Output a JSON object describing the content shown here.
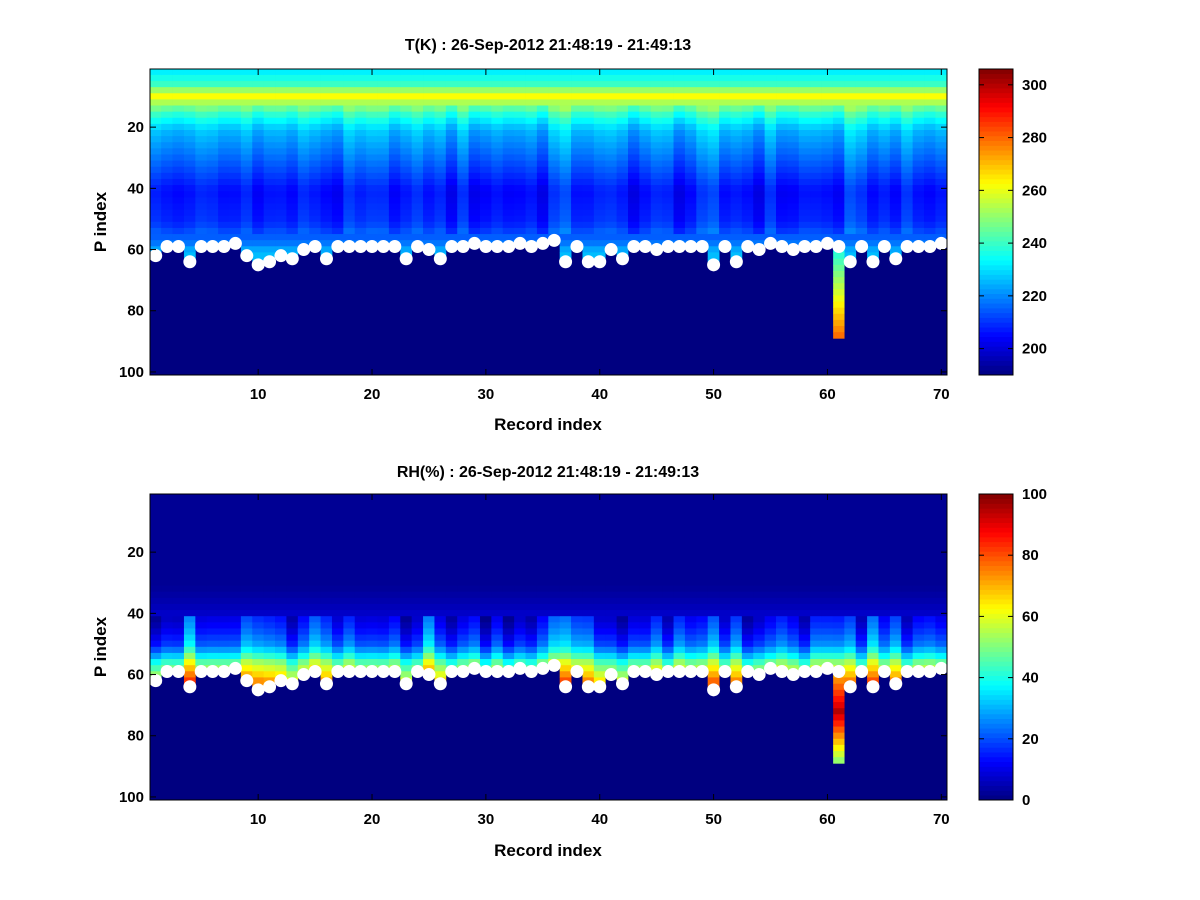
{
  "chart_data": [
    {
      "type": "heatmap",
      "title": "T(K) : 26-Sep-2012 21:48:19 - 21:49:13",
      "xlabel": "Record index",
      "ylabel": "P index",
      "xlim": [
        1,
        70
      ],
      "ylim": [
        1,
        101
      ],
      "y_reversed": true,
      "xticks": [
        10,
        20,
        30,
        40,
        50,
        60,
        70
      ],
      "yticks": [
        20,
        40,
        60,
        80,
        100
      ],
      "colormap": "jet",
      "clim": [
        190,
        306
      ],
      "colorbar_ticks": [
        200,
        220,
        240,
        260,
        280,
        300
      ],
      "marker_color": "#ffffff",
      "grid": false,
      "profile_levels": [
        {
          "p": 1,
          "value": 232
        },
        {
          "p": 5,
          "value": 240
        },
        {
          "p": 9,
          "value": 262
        },
        {
          "p": 14,
          "value": 240
        },
        {
          "p": 20,
          "value": 225
        },
        {
          "p": 30,
          "value": 215
        },
        {
          "p": 40,
          "value": 205
        },
        {
          "p": 50,
          "value": 208
        },
        {
          "p": 57,
          "value": 218
        },
        {
          "p": 60,
          "value": 226
        }
      ],
      "below_surface_value": 190,
      "anomaly": {
        "record": 61,
        "p_start": 59,
        "p_end": 89,
        "value_top": 236,
        "value_bottom": 282
      }
    },
    {
      "type": "heatmap",
      "title": "RH(%) : 26-Sep-2012 21:48:19 - 21:49:13",
      "xlabel": "Record index",
      "ylabel": "P index",
      "xlim": [
        1,
        70
      ],
      "ylim": [
        1,
        101
      ],
      "y_reversed": true,
      "xticks": [
        10,
        20,
        30,
        40,
        50,
        60,
        70
      ],
      "yticks": [
        20,
        40,
        60,
        80,
        100
      ],
      "colormap": "jet",
      "clim": [
        0,
        100
      ],
      "colorbar_ticks": [
        0,
        20,
        40,
        60,
        80,
        100
      ],
      "marker_color": "#ffffff",
      "grid": false,
      "profile_levels": [
        {
          "p": 1,
          "value": 2
        },
        {
          "p": 30,
          "value": 2
        },
        {
          "p": 38,
          "value": 6
        },
        {
          "p": 44,
          "value": 12
        },
        {
          "p": 49,
          "value": 20
        },
        {
          "p": 52,
          "value": 30
        },
        {
          "p": 55,
          "value": 45
        },
        {
          "p": 58,
          "value": 55
        },
        {
          "p": 61,
          "value": 65
        }
      ],
      "below_surface_value": 0,
      "anomaly": {
        "record": 61,
        "p_start": 59,
        "p_end": 89,
        "value_top": 70,
        "value_bottom": 45
      }
    }
  ],
  "surface_markers": {
    "records": [
      1,
      2,
      3,
      4,
      5,
      6,
      7,
      8,
      9,
      10,
      11,
      12,
      13,
      14,
      15,
      16,
      17,
      18,
      19,
      20,
      21,
      22,
      23,
      24,
      25,
      26,
      27,
      28,
      29,
      30,
      31,
      32,
      33,
      34,
      35,
      36,
      37,
      38,
      39,
      40,
      41,
      42,
      43,
      44,
      45,
      46,
      47,
      48,
      49,
      50,
      51,
      52,
      53,
      54,
      55,
      56,
      57,
      58,
      59,
      60,
      61,
      62,
      63,
      64,
      65,
      66,
      67,
      68,
      69,
      70
    ],
    "p_index": [
      62,
      59,
      59,
      64,
      59,
      59,
      59,
      58,
      62,
      65,
      64,
      62,
      63,
      60,
      59,
      63,
      59,
      59,
      59,
      59,
      59,
      59,
      63,
      59,
      60,
      63,
      59,
      59,
      58,
      59,
      59,
      59,
      58,
      59,
      58,
      57,
      64,
      59,
      64,
      64,
      60,
      63,
      59,
      59,
      60,
      59,
      59,
      59,
      59,
      65,
      59,
      64,
      59,
      60,
      58,
      59,
      60,
      59,
      59,
      58,
      59,
      64,
      59,
      64,
      59,
      63,
      59,
      59,
      59,
      58
    ],
    "warm_records": [
      4,
      9,
      10,
      15,
      22,
      25,
      36,
      37,
      38,
      39,
      50,
      52,
      62,
      64,
      66
    ]
  }
}
